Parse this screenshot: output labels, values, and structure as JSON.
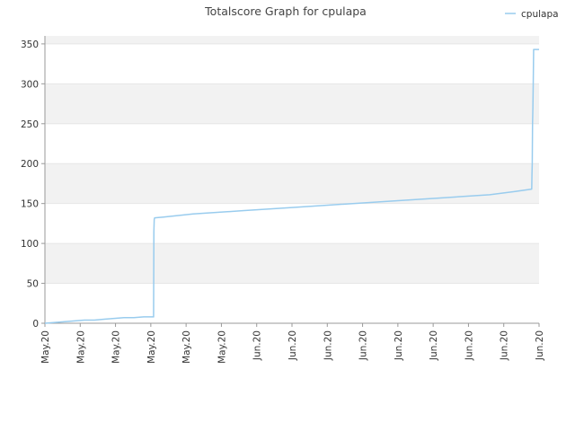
{
  "chart_data": {
    "type": "line",
    "title": "Totalscore Graph for cpulapa",
    "xlabel": "",
    "ylabel": "",
    "ylim": [
      0,
      360
    ],
    "yticks": [
      0,
      50,
      100,
      150,
      200,
      250,
      300,
      350
    ],
    "x_tick_labels": [
      "May.20",
      "May.20",
      "May.20",
      "May.20",
      "May.20",
      "May.20",
      "Jun.20",
      "Jun.20",
      "Jun.20",
      "Jun.20",
      "Jun.20",
      "Jun.20",
      "Jun.20",
      "Jun.20",
      "Jun.20"
    ],
    "grid": true,
    "legend_position": "top-right",
    "colors": {
      "line": "#99ccee",
      "band": "#f2f2f2",
      "grid": "#e6e6e6"
    },
    "series": [
      {
        "name": "cpulapa",
        "x": [
          0.0,
          0.02,
          0.04,
          0.06,
          0.08,
          0.1,
          0.12,
          0.14,
          0.16,
          0.18,
          0.2,
          0.22,
          0.2199,
          0.2205,
          0.2212,
          0.222,
          0.24,
          0.3,
          0.4,
          0.5,
          0.6,
          0.7,
          0.8,
          0.9,
          0.95,
          0.985,
          0.9852,
          0.9856,
          0.9862,
          0.9868,
          0.9875,
          0.9882,
          0.989,
          1.0
        ],
        "values": [
          0,
          1,
          2,
          3,
          4,
          4,
          5,
          6,
          7,
          7,
          8,
          8,
          8,
          115,
          130,
          132,
          133,
          137,
          141,
          145,
          149,
          153,
          157,
          161,
          165,
          168,
          170,
          185,
          200,
          250,
          270,
          300,
          343,
          343
        ]
      }
    ]
  }
}
